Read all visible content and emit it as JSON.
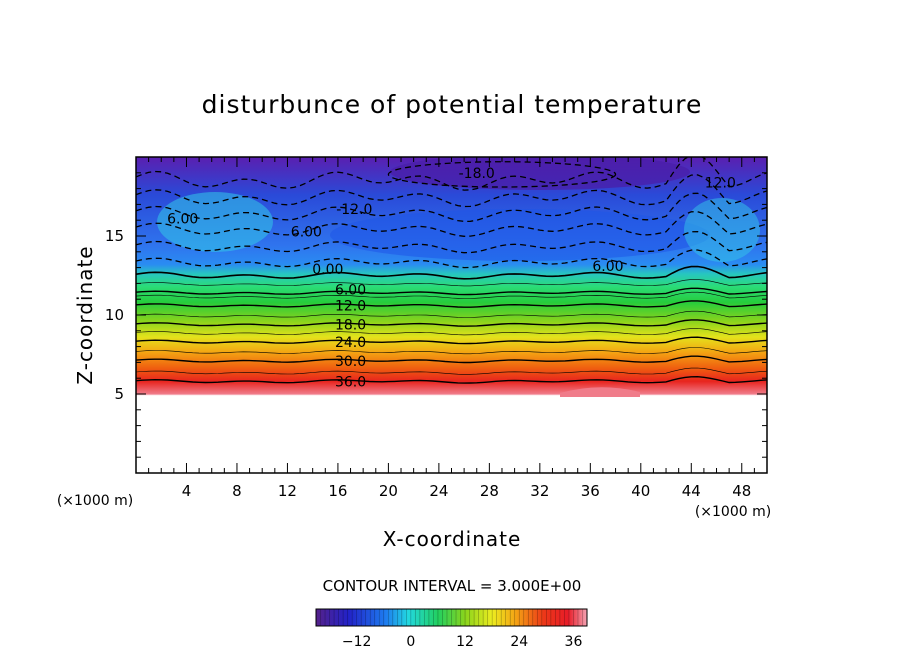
{
  "chart_data": {
    "type": "heatmap",
    "title": "disturbunce of potential temperature",
    "xlabel": "X-coordinate",
    "ylabel": "Z-coordinate",
    "x_unit": "(×1000 m)",
    "y_unit": "(×1000 m)",
    "xlim": [
      0,
      50
    ],
    "ylim": [
      0,
      20
    ],
    "x_ticks": [
      "4",
      "8",
      "12",
      "16",
      "20",
      "24",
      "28",
      "32",
      "36",
      "40",
      "44",
      "48"
    ],
    "y_ticks": [
      "5",
      "10",
      "15"
    ],
    "contour_interval_text": "CONTOUR INTERVAL = 3.000E+00",
    "contour_interval": 3.0,
    "negative_contours": "dashed",
    "colorbar": {
      "min": -21,
      "max": 39,
      "ticks": [
        "-12",
        "0",
        "12",
        "24",
        "36"
      ],
      "colormap": "rainbow (purple-blue-cyan-green-yellow-red-pink)"
    },
    "field_summary": {
      "no_data_below_z": 5.3,
      "zero_contour_z": 12.5,
      "layers": [
        {
          "z": 11.4,
          "value": 6
        },
        {
          "z": 10.6,
          "value": 12
        },
        {
          "z": 9.4,
          "value": 18
        },
        {
          "z": 8.3,
          "value": 24
        },
        {
          "z": 7.1,
          "value": 30
        },
        {
          "z": 5.8,
          "value": 36
        }
      ],
      "upper_minimum": {
        "x": 25,
        "z": 18.9,
        "value": -18
      }
    },
    "contour_labels": [
      {
        "text": "-18.0",
        "x": 27.0,
        "z": 19.0
      },
      {
        "text": "-12.0",
        "x": 17.3,
        "z": 16.7
      },
      {
        "text": "12.0",
        "x": 46.3,
        "z": 18.4
      },
      {
        "text": "6.00",
        "x": 3.7,
        "z": 16.1
      },
      {
        "text": "6.00",
        "x": 13.5,
        "z": 15.3
      },
      {
        "text": "6.00",
        "x": 37.4,
        "z": 13.1
      },
      {
        "text": "0.00",
        "x": 15.2,
        "z": 12.9
      },
      {
        "text": "6.00",
        "x": 17.0,
        "z": 11.6
      },
      {
        "text": "12.0",
        "x": 17.0,
        "z": 10.6
      },
      {
        "text": "18.0",
        "x": 17.0,
        "z": 9.4
      },
      {
        "text": "24.0",
        "x": 17.0,
        "z": 8.3
      },
      {
        "text": "30.0",
        "x": 17.0,
        "z": 7.1
      },
      {
        "text": "36.0",
        "x": 17.0,
        "z": 5.8
      }
    ]
  }
}
